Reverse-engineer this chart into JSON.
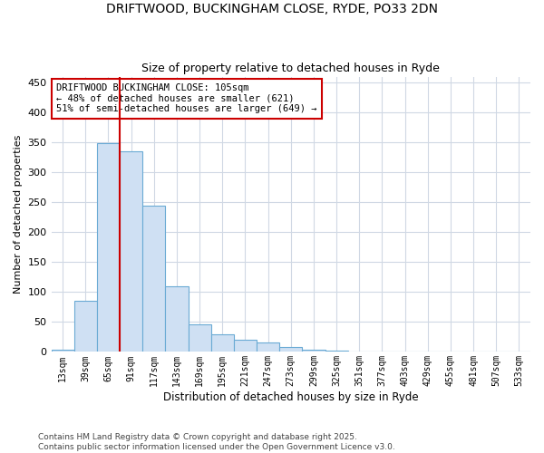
{
  "title_line1": "DRIFTWOOD, BUCKINGHAM CLOSE, RYDE, PO33 2DN",
  "title_line2": "Size of property relative to detached houses in Ryde",
  "xlabel": "Distribution of detached houses by size in Ryde",
  "ylabel": "Number of detached properties",
  "categories": [
    "13sqm",
    "39sqm",
    "65sqm",
    "91sqm",
    "117sqm",
    "143sqm",
    "169sqm",
    "195sqm",
    "221sqm",
    "247sqm",
    "273sqm",
    "299sqm",
    "325sqm",
    "351sqm",
    "377sqm",
    "403sqm",
    "429sqm",
    "455sqm",
    "481sqm",
    "507sqm",
    "533sqm"
  ],
  "values": [
    4,
    86,
    349,
    335,
    245,
    110,
    46,
    30,
    20,
    16,
    8,
    4,
    2,
    1,
    1,
    0,
    0,
    0,
    0,
    0,
    0
  ],
  "bar_color": "#cfe0f3",
  "bar_edge_color": "#6aaad4",
  "vline_x": 2.5,
  "vline_color": "#cc0000",
  "annotation_text": "DRIFTWOOD BUCKINGHAM CLOSE: 105sqm\n← 48% of detached houses are smaller (621)\n51% of semi-detached houses are larger (649) →",
  "annotation_box_color": "#ffffff",
  "annotation_box_edge": "#cc0000",
  "ylim": [
    0,
    460
  ],
  "yticks": [
    0,
    50,
    100,
    150,
    200,
    250,
    300,
    350,
    400,
    450
  ],
  "footer_text": "Contains HM Land Registry data © Crown copyright and database right 2025.\nContains public sector information licensed under the Open Government Licence v3.0.",
  "background_color": "#ffffff",
  "grid_color": "#d0d8e4"
}
